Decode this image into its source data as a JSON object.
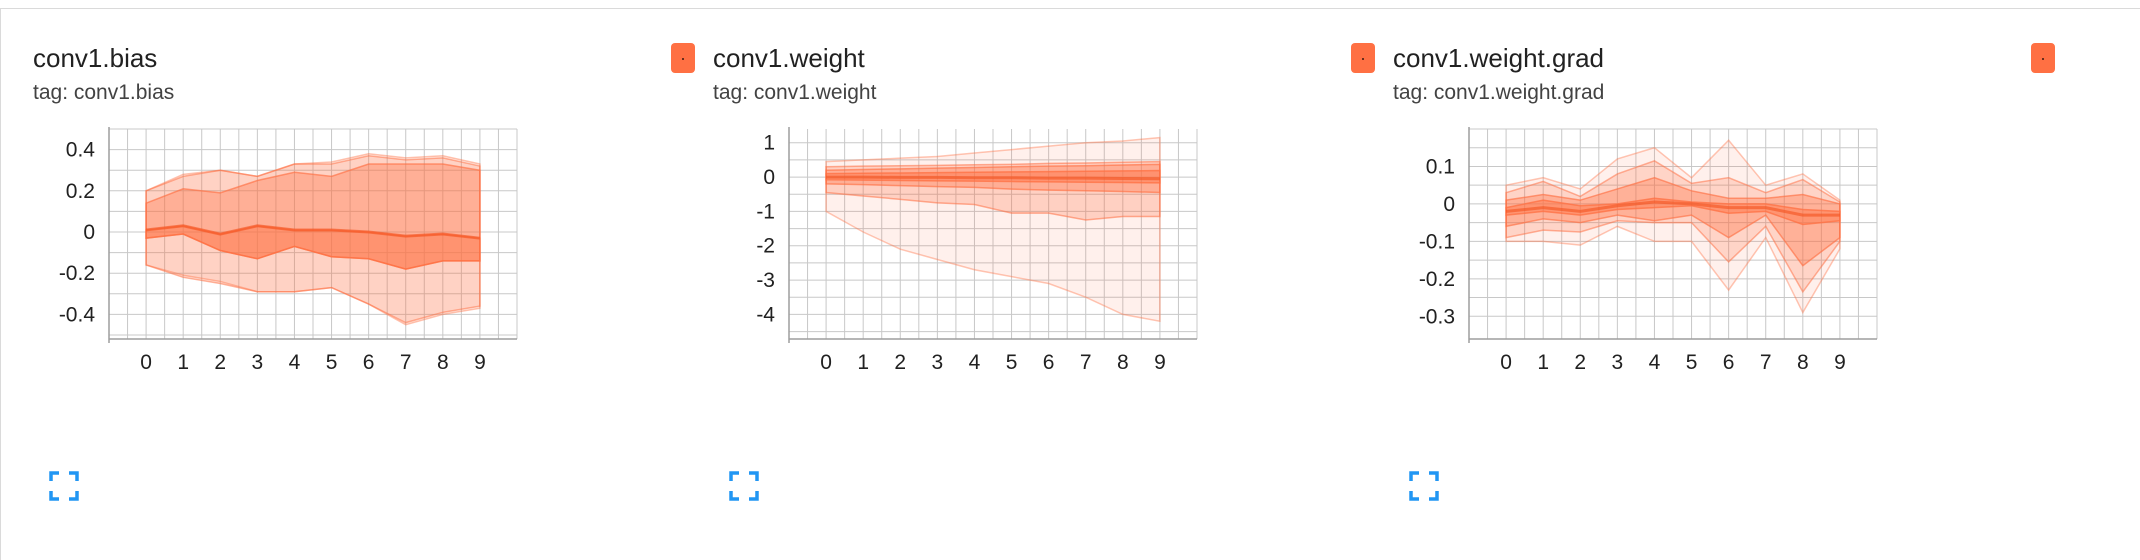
{
  "theme": {
    "band_color": "#ff7043",
    "line_color": "#f4511e",
    "grid_color": "#c8c8c8",
    "axis_color": "#9e9e9e",
    "expand_color": "#2196f3"
  },
  "cards": [
    {
      "title": "conv1.bias",
      "tag": "tag: conv1.bias",
      "swatch_color": "#ff7043",
      "swatch_icon": "color-picker-icon",
      "expand_icon": "fullscreen-icon",
      "chart_data": {
        "type": "area",
        "chart_kind": "distribution",
        "x": [
          0,
          1,
          2,
          3,
          4,
          5,
          6,
          7,
          8,
          9
        ],
        "x_ticks": [
          "0",
          "1",
          "2",
          "3",
          "4",
          "5",
          "6",
          "7",
          "8",
          "9"
        ],
        "y_ticks": [
          "0.4",
          "0.2",
          "0",
          "-0.2",
          "-0.4"
        ],
        "y_tick_values": [
          0.4,
          0.2,
          0,
          -0.2,
          -0.4
        ],
        "xlim": [
          -1,
          10
        ],
        "ylim": [
          -0.5,
          0.5
        ],
        "grid": true,
        "bands": [
          {
            "opacity": 0.12,
            "upper": [
              0.2,
              0.28,
              0.3,
              0.27,
              0.33,
              0.34,
              0.38,
              0.36,
              0.37,
              0.33
            ],
            "lower": [
              -0.16,
              -0.21,
              -0.24,
              -0.29,
              -0.29,
              -0.27,
              -0.35,
              -0.45,
              -0.4,
              -0.37
            ]
          },
          {
            "opacity": 0.22,
            "upper": [
              0.2,
              0.27,
              0.3,
              0.27,
              0.33,
              0.33,
              0.37,
              0.35,
              0.36,
              0.32
            ],
            "lower": [
              -0.16,
              -0.22,
              -0.25,
              -0.29,
              -0.29,
              -0.27,
              -0.35,
              -0.44,
              -0.39,
              -0.36
            ]
          },
          {
            "opacity": 0.35,
            "upper": [
              0.14,
              0.21,
              0.19,
              0.25,
              0.29,
              0.27,
              0.33,
              0.33,
              0.33,
              0.3
            ],
            "lower": [
              -0.03,
              -0.01,
              -0.09,
              -0.13,
              -0.07,
              -0.12,
              -0.13,
              -0.18,
              -0.14,
              -0.14
            ]
          },
          {
            "opacity": 0.45,
            "upper": [
              0.01,
              0.03,
              -0.01,
              0.03,
              0.01,
              0.01,
              0.0,
              -0.02,
              -0.01,
              -0.03
            ],
            "lower": [
              -0.03,
              -0.01,
              -0.09,
              -0.13,
              -0.07,
              -0.12,
              -0.13,
              -0.18,
              -0.14,
              -0.14
            ]
          }
        ],
        "median": [
          0.01,
          0.03,
          -0.01,
          0.03,
          0.01,
          0.01,
          0.0,
          -0.02,
          -0.01,
          -0.03
        ]
      }
    },
    {
      "title": "conv1.weight",
      "tag": "tag: conv1.weight",
      "swatch_color": "#ff7043",
      "swatch_icon": "color-picker-icon",
      "expand_icon": "fullscreen-icon",
      "chart_data": {
        "type": "area",
        "chart_kind": "distribution",
        "x": [
          0,
          1,
          2,
          3,
          4,
          5,
          6,
          7,
          8,
          9
        ],
        "x_ticks": [
          "0",
          "1",
          "2",
          "3",
          "4",
          "5",
          "6",
          "7",
          "8",
          "9"
        ],
        "y_ticks": [
          "1",
          "0",
          "-1",
          "-2",
          "-3",
          "-4"
        ],
        "y_tick_values": [
          1,
          0,
          -1,
          -2,
          -3,
          -4
        ],
        "xlim": [
          -1,
          10
        ],
        "ylim": [
          -4.6,
          1.4
        ],
        "grid": true,
        "bands": [
          {
            "opacity": 0.1,
            "upper": [
              0.45,
              0.5,
              0.55,
              0.6,
              0.7,
              0.8,
              0.9,
              1.0,
              1.05,
              1.15
            ],
            "lower": [
              -1.0,
              -1.6,
              -2.1,
              -2.4,
              -2.7,
              -2.9,
              -3.1,
              -3.5,
              -4.0,
              -4.2
            ]
          },
          {
            "opacity": 0.25,
            "upper": [
              0.3,
              0.32,
              0.33,
              0.34,
              0.36,
              0.37,
              0.4,
              0.41,
              0.43,
              0.45
            ],
            "lower": [
              -0.45,
              -0.55,
              -0.65,
              -0.75,
              -0.8,
              -1.05,
              -1.05,
              -1.25,
              -1.15,
              -1.15
            ]
          },
          {
            "opacity": 0.35,
            "upper": [
              0.2,
              0.22,
              0.24,
              0.26,
              0.28,
              0.3,
              0.32,
              0.33,
              0.35,
              0.37
            ],
            "lower": [
              -0.2,
              -0.22,
              -0.25,
              -0.28,
              -0.3,
              -0.35,
              -0.38,
              -0.4,
              -0.42,
              -0.45
            ]
          },
          {
            "opacity": 0.45,
            "upper": [
              0.1,
              0.11,
              0.12,
              0.13,
              0.14,
              0.15,
              0.16,
              0.17,
              0.18,
              0.19
            ],
            "lower": [
              -0.08,
              -0.09,
              -0.1,
              -0.11,
              -0.12,
              -0.13,
              -0.14,
              -0.15,
              -0.16,
              -0.17
            ]
          }
        ],
        "median": [
          0.0,
          0.0,
          -0.01,
          -0.01,
          -0.02,
          -0.02,
          -0.03,
          -0.03,
          -0.04,
          -0.05
        ]
      }
    },
    {
      "title": "conv1.weight.grad",
      "tag": "tag: conv1.weight.grad",
      "swatch_color": "#ff7043",
      "swatch_icon": "color-picker-icon",
      "expand_icon": "fullscreen-icon",
      "chart_data": {
        "type": "area",
        "chart_kind": "distribution",
        "x": [
          0,
          1,
          2,
          3,
          4,
          5,
          6,
          7,
          8,
          9
        ],
        "x_ticks": [
          "0",
          "1",
          "2",
          "3",
          "4",
          "5",
          "6",
          "7",
          "8",
          "9"
        ],
        "y_ticks": [
          "0.1",
          "0",
          "-0.1",
          "-0.2",
          "-0.3"
        ],
        "y_tick_values": [
          0.1,
          0,
          -0.1,
          -0.2,
          -0.3
        ],
        "xlim": [
          -1,
          10
        ],
        "ylim": [
          -0.35,
          0.2
        ],
        "grid": true,
        "bands": [
          {
            "opacity": 0.1,
            "upper": [
              0.05,
              0.07,
              0.04,
              0.12,
              0.15,
              0.07,
              0.17,
              0.05,
              0.08,
              0.01
            ],
            "lower": [
              -0.1,
              -0.1,
              -0.11,
              -0.06,
              -0.1,
              -0.1,
              -0.23,
              -0.09,
              -0.29,
              -0.12
            ]
          },
          {
            "opacity": 0.22,
            "upper": [
              0.03,
              0.06,
              0.02,
              0.08,
              0.115,
              0.055,
              0.07,
              0.03,
              0.065,
              0.005
            ],
            "lower": [
              -0.09,
              -0.07,
              -0.075,
              -0.045,
              -0.05,
              -0.05,
              -0.155,
              -0.06,
              -0.235,
              -0.1
            ]
          },
          {
            "opacity": 0.35,
            "upper": [
              0.01,
              0.025,
              0.01,
              0.04,
              0.07,
              0.035,
              0.015,
              0.015,
              0.025,
              0.0
            ],
            "lower": [
              -0.06,
              -0.04,
              -0.05,
              -0.03,
              -0.045,
              -0.03,
              -0.09,
              -0.03,
              -0.165,
              -0.09
            ]
          },
          {
            "opacity": 0.45,
            "upper": [
              -0.01,
              0.01,
              -0.005,
              0.0,
              0.015,
              0.005,
              0.0,
              0.0,
              -0.015,
              -0.02
            ],
            "lower": [
              -0.03,
              -0.02,
              -0.03,
              -0.015,
              -0.01,
              -0.005,
              -0.025,
              -0.02,
              -0.055,
              -0.045
            ]
          }
        ],
        "median": [
          -0.02,
          -0.01,
          -0.02,
          -0.005,
          0.005,
          0.0,
          -0.01,
          -0.01,
          -0.03,
          -0.03
        ]
      }
    }
  ]
}
